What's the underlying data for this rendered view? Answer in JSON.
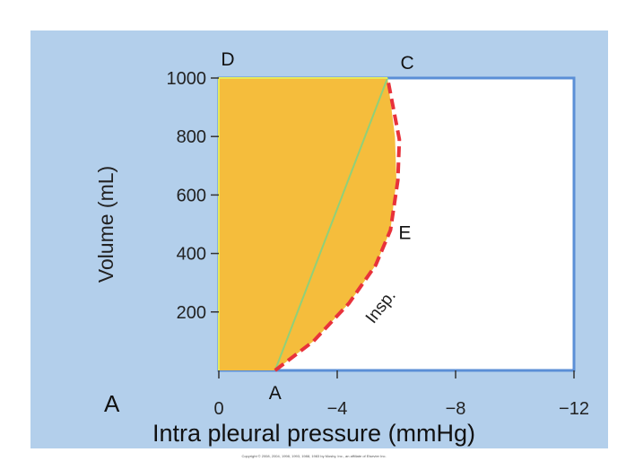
{
  "chart_data": {
    "type": "line",
    "title": "",
    "panel_label": "A",
    "xlabel": "Intra pleural pressure (mmHg)",
    "ylabel": "Volume (mL)",
    "xlim": [
      0,
      -12
    ],
    "ylim": [
      0,
      1000
    ],
    "x_ticks": [
      {
        "value": 0,
        "label": "0"
      },
      {
        "value": -4,
        "label": "−4"
      },
      {
        "value": -8,
        "label": "−8"
      },
      {
        "value": -12,
        "label": "−12"
      }
    ],
    "y_ticks": [
      {
        "value": 200,
        "label": "200"
      },
      {
        "value": 400,
        "label": "400"
      },
      {
        "value": 600,
        "label": "600"
      },
      {
        "value": 800,
        "label": "800"
      },
      {
        "value": 1000,
        "label": "1000"
      }
    ],
    "points": [
      {
        "label": "A",
        "x": -1.9,
        "y": 0
      },
      {
        "label": "C",
        "x": -5.7,
        "y": 1000
      },
      {
        "label": "D",
        "x": 0,
        "y": 1000
      },
      {
        "label": "E",
        "x": -5.8,
        "y": 480
      }
    ],
    "area_region": {
      "color": "#f5bd3c",
      "boundary": [
        [
          0,
          0
        ],
        [
          -1.9,
          0
        ],
        [
          -3.2,
          100
        ],
        [
          -4.4,
          230
        ],
        [
          -5.3,
          360
        ],
        [
          -5.8,
          480
        ],
        [
          -6.0,
          650
        ],
        [
          -5.95,
          800
        ],
        [
          -5.7,
          1000
        ],
        [
          0,
          1000
        ]
      ]
    },
    "series": [
      {
        "name": "",
        "style": "solid",
        "color": "#8fd07a",
        "points": [
          [
            -1.9,
            0
          ],
          [
            -5.7,
            1000
          ]
        ]
      },
      {
        "name": "Insp.",
        "style": "dashed",
        "color": "#e8323b",
        "points": [
          [
            -1.9,
            0
          ],
          [
            -3.2,
            100
          ],
          [
            -4.4,
            230
          ],
          [
            -5.3,
            360
          ],
          [
            -5.8,
            480
          ],
          [
            -6.05,
            650
          ],
          [
            -6.1,
            790
          ],
          [
            -5.7,
            1000
          ]
        ]
      },
      {
        "name": "",
        "style": "solid",
        "color": "#e8e85a",
        "points": [
          [
            0,
            0
          ],
          [
            0,
            1000
          ],
          [
            -5.7,
            1000
          ]
        ]
      }
    ],
    "annotations": [
      {
        "text": "Insp.",
        "x": -4.5,
        "y": 200
      }
    ],
    "colors": {
      "panel_background": "#b3cfeb",
      "plot_background": "#ffffff",
      "frame": "#5b8fd6",
      "fill": "#f5bd3c"
    },
    "copyright": "Copyright © 2008, 2004, 1998, 1993, 1988, 1983 by Mosby, Inc., an affiliate of Elsevier Inc."
  }
}
